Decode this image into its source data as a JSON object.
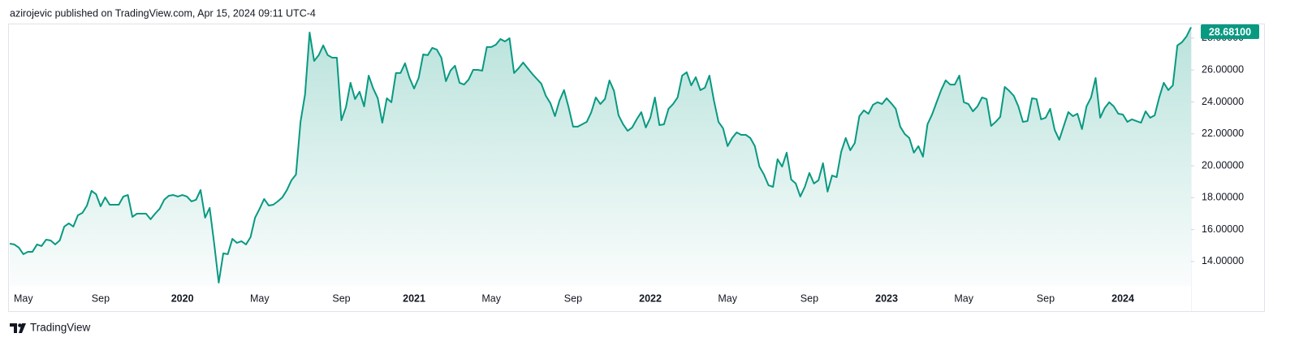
{
  "chart_data": {
    "type": "area",
    "title": "azirojevic published on TradingView.com, Apr 15, 2024 09:11 UTC-4",
    "brand": "TradingView",
    "color": "#089981",
    "categories": [
      null,
      null,
      null,
      "May",
      null,
      null,
      null,
      null,
      null,
      null,
      null,
      null,
      null,
      null,
      null,
      null,
      null,
      null,
      null,
      null,
      "Sep",
      null,
      null,
      null,
      null,
      null,
      null,
      null,
      null,
      null,
      null,
      null,
      null,
      null,
      null,
      null,
      null,
      null,
      "2020",
      null,
      null,
      null,
      null,
      null,
      null,
      null,
      null,
      null,
      null,
      null,
      null,
      null,
      null,
      null,
      null,
      "May",
      null,
      null,
      null,
      null,
      null,
      null,
      null,
      null,
      null,
      null,
      null,
      null,
      null,
      null,
      null,
      null,
      null,
      "Sep",
      null,
      null,
      null,
      null,
      null,
      null,
      null,
      null,
      null,
      null,
      null,
      null,
      null,
      null,
      null,
      "2021",
      null,
      null,
      null,
      null,
      null,
      null,
      null,
      null,
      null,
      null,
      null,
      null,
      null,
      null,
      null,
      null,
      "May",
      null,
      null,
      null,
      null,
      null,
      null,
      null,
      null,
      null,
      null,
      null,
      null,
      null,
      null,
      null,
      null,
      null,
      "Sep",
      null,
      null,
      null,
      null,
      null,
      null,
      null,
      null,
      null,
      null,
      null,
      null,
      null,
      null,
      null,
      null,
      "2022",
      null,
      null,
      null,
      null,
      null,
      null,
      null,
      null,
      null,
      null,
      null,
      null,
      null,
      null,
      null,
      null,
      "May",
      null,
      null,
      null,
      null,
      null,
      null,
      null,
      null,
      null,
      null,
      null,
      null,
      null,
      null,
      null,
      null,
      null,
      "Sep",
      null,
      null,
      null,
      null,
      null,
      null,
      null,
      null,
      null,
      null,
      null,
      null,
      null,
      null,
      null,
      null,
      "2023",
      null,
      null,
      null,
      null,
      null,
      null,
      null,
      null,
      null,
      null,
      null,
      null,
      null,
      null,
      null,
      null,
      "May",
      null,
      null,
      null,
      null,
      null,
      null,
      null,
      null,
      null,
      null,
      null,
      null,
      null,
      null,
      null,
      null,
      null,
      "Sep",
      null,
      null,
      null,
      null,
      null,
      null,
      null,
      null,
      null,
      null,
      null,
      null,
      null,
      null,
      null,
      null,
      "2024",
      null,
      null,
      null,
      null,
      null,
      null,
      null,
      null,
      null,
      null,
      null,
      null,
      null,
      null,
      null
    ],
    "values": [
      15.12,
      15.07,
      14.87,
      14.46,
      14.61,
      14.61,
      15.07,
      14.97,
      15.37,
      15.32,
      15.07,
      15.32,
      16.19,
      16.39,
      16.19,
      16.9,
      17.05,
      17.51,
      18.43,
      18.22,
      17.46,
      18.02,
      17.56,
      17.56,
      17.56,
      18.07,
      18.17,
      16.8,
      17.0,
      17.0,
      17.0,
      16.65,
      17.0,
      17.31,
      17.87,
      18.12,
      18.17,
      18.07,
      18.17,
      18.07,
      17.77,
      17.87,
      18.48,
      16.75,
      17.36,
      15.12,
      12.68,
      14.51,
      14.46,
      15.42,
      15.17,
      15.27,
      15.07,
      15.53,
      16.75,
      17.31,
      17.92,
      17.51,
      17.56,
      17.77,
      18.02,
      18.48,
      19.09,
      19.45,
      22.75,
      24.48,
      28.35,
      26.57,
      26.93,
      27.54,
      26.93,
      26.77,
      26.77,
      22.85,
      23.67,
      25.2,
      24.18,
      24.64,
      23.72,
      25.65,
      24.84,
      24.23,
      22.7,
      24.23,
      23.98,
      25.81,
      25.81,
      26.42,
      25.5,
      24.84,
      25.5,
      26.98,
      26.93,
      27.39,
      27.28,
      26.77,
      25.3,
      25.96,
      26.27,
      25.2,
      25.09,
      25.4,
      26.01,
      26.01,
      25.96,
      27.44,
      27.44,
      27.59,
      27.94,
      27.79,
      27.99,
      25.81,
      26.11,
      26.47,
      26.11,
      25.76,
      25.45,
      25.14,
      24.38,
      23.92,
      23.11,
      24.08,
      24.74,
      23.67,
      22.45,
      22.45,
      22.6,
      22.75,
      23.36,
      24.28,
      23.87,
      24.18,
      25.35,
      24.69,
      23.16,
      22.6,
      22.19,
      22.4,
      22.91,
      23.36,
      22.4,
      23.01,
      24.28,
      22.55,
      22.6,
      23.57,
      23.87,
      24.28,
      25.65,
      25.86,
      25.04,
      25.55,
      24.74,
      24.89,
      25.65,
      24.08,
      22.75,
      22.35,
      21.23,
      21.74,
      22.09,
      21.94,
      21.94,
      21.74,
      21.23,
      19.95,
      19.45,
      18.78,
      18.68,
      20.41,
      19.95,
      20.82,
      19.14,
      18.89,
      18.07,
      18.68,
      19.55,
      18.89,
      19.09,
      20.16,
      18.38,
      19.39,
      19.29,
      20.87,
      21.74,
      20.97,
      21.43,
      23.11,
      23.47,
      23.26,
      23.82,
      23.98,
      23.87,
      24.23,
      23.92,
      23.57,
      22.45,
      21.99,
      21.74,
      20.82,
      21.23,
      20.57,
      22.6,
      23.21,
      23.98,
      24.74,
      25.35,
      25.09,
      25.09,
      25.65,
      23.98,
      23.87,
      23.41,
      23.72,
      24.28,
      24.18,
      22.5,
      22.75,
      23.06,
      24.94,
      24.69,
      24.38,
      23.72,
      22.75,
      22.8,
      24.23,
      24.18,
      22.91,
      23.01,
      23.57,
      22.24,
      21.63,
      22.5,
      23.36,
      23.11,
      23.26,
      22.3,
      23.72,
      24.28,
      25.5,
      23.01,
      23.62,
      23.98,
      23.72,
      23.26,
      23.21,
      22.75,
      22.91,
      22.8,
      22.7,
      23.41,
      23.01,
      23.16,
      24.28,
      25.2,
      24.74,
      25.04,
      27.54,
      27.74,
      28.1,
      28.681
    ],
    "last_price": {
      "value": 28.681,
      "label": "28.68100"
    },
    "ylim": [
      12.47,
      28.86
    ],
    "yticks": [
      {
        "value": 14,
        "label": "14.00000"
      },
      {
        "value": 16,
        "label": "16.00000"
      },
      {
        "value": 18,
        "label": "18.00000"
      },
      {
        "value": 20,
        "label": "20.00000"
      },
      {
        "value": 22,
        "label": "22.00000"
      },
      {
        "value": 24,
        "label": "24.00000"
      },
      {
        "value": 26,
        "label": "26.00000"
      },
      {
        "value": 28,
        "label": "28.00000"
      }
    ],
    "grid": false
  }
}
